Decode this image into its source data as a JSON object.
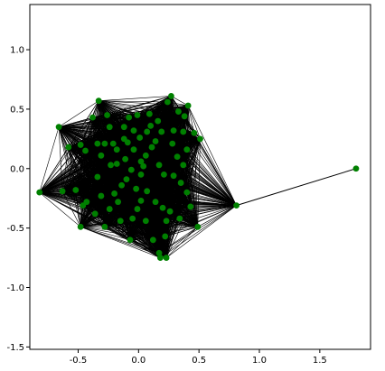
{
  "chart_data": {
    "type": "scatter",
    "title": "",
    "xlabel": "",
    "ylabel": "",
    "xlim": [
      -0.9,
      1.92
    ],
    "ylim": [
      -1.52,
      1.38
    ],
    "x_ticks": [
      "-0.5",
      "0.0",
      "0.5",
      "1.0",
      "1.5"
    ],
    "x_tick_values": [
      -0.5,
      0.0,
      0.5,
      1.0,
      1.5
    ],
    "y_ticks": [
      "-1.5",
      "-1.0",
      "-0.5",
      "0.0",
      "0.5",
      "1.0"
    ],
    "y_tick_values": [
      -1.5,
      -1.0,
      -0.5,
      0.0,
      0.5,
      1.0
    ],
    "grid": false,
    "node_color": "#008000",
    "edge_color": "#000000",
    "nodes": [
      {
        "x": -0.33,
        "y": 0.57
      },
      {
        "x": 0.27,
        "y": 0.61
      },
      {
        "x": 0.41,
        "y": 0.53
      },
      {
        "x": -0.66,
        "y": 0.35
      },
      {
        "x": 0.51,
        "y": 0.25
      },
      {
        "x": -0.82,
        "y": -0.2
      },
      {
        "x": -0.48,
        "y": -0.49
      },
      {
        "x": 0.81,
        "y": -0.31
      },
      {
        "x": 1.8,
        "y": 0.0
      },
      {
        "x": 0.49,
        "y": -0.49
      },
      {
        "x": 0.23,
        "y": -0.75
      },
      {
        "x": 0.18,
        "y": -0.75
      },
      {
        "x": -0.07,
        "y": -0.6
      },
      {
        "x": 0.17,
        "y": -0.71
      },
      {
        "x": -0.28,
        "y": -0.49
      },
      {
        "x": 0.22,
        "y": -0.57
      },
      {
        "x": -0.63,
        "y": -0.19
      },
      {
        "x": -0.58,
        "y": 0.18
      },
      {
        "x": -0.48,
        "y": 0.2
      },
      {
        "x": -0.44,
        "y": 0.15
      },
      {
        "x": -0.34,
        "y": 0.21
      },
      {
        "x": -0.28,
        "y": 0.21
      },
      {
        "x": -0.21,
        "y": 0.21
      },
      {
        "x": -0.18,
        "y": 0.16
      },
      {
        "x": -0.31,
        "y": 0.11
      },
      {
        "x": -0.23,
        "y": 0.03
      },
      {
        "x": -0.18,
        "y": 0.04
      },
      {
        "x": -0.11,
        "y": 0.08
      },
      {
        "x": -0.09,
        "y": 0.22
      },
      {
        "x": -0.04,
        "y": 0.16
      },
      {
        "x": 0.01,
        "y": 0.26
      },
      {
        "x": 0.02,
        "y": 0.06
      },
      {
        "x": 0.06,
        "y": 0.11
      },
      {
        "x": 0.11,
        "y": 0.18
      },
      {
        "x": 0.14,
        "y": 0.23
      },
      {
        "x": 0.1,
        "y": 0.36
      },
      {
        "x": 0.07,
        "y": 0.31
      },
      {
        "x": -0.04,
        "y": 0.32
      },
      {
        "x": -0.01,
        "y": 0.45
      },
      {
        "x": -0.12,
        "y": 0.35
      },
      {
        "x": -0.26,
        "y": 0.45
      },
      {
        "x": -0.38,
        "y": 0.43
      },
      {
        "x": -0.24,
        "y": 0.35
      },
      {
        "x": 0.16,
        "y": 0.4
      },
      {
        "x": 0.24,
        "y": 0.56
      },
      {
        "x": 0.19,
        "y": 0.31
      },
      {
        "x": 0.28,
        "y": 0.21
      },
      {
        "x": 0.32,
        "y": 0.1
      },
      {
        "x": 0.4,
        "y": 0.16
      },
      {
        "x": 0.46,
        "y": 0.3
      },
      {
        "x": 0.37,
        "y": 0.03
      },
      {
        "x": 0.4,
        "y": -0.2
      },
      {
        "x": 0.43,
        "y": -0.32
      },
      {
        "x": 0.34,
        "y": -0.42
      },
      {
        "x": 0.26,
        "y": -0.36
      },
      {
        "x": 0.2,
        "y": -0.33
      },
      {
        "x": 0.14,
        "y": -0.28
      },
      {
        "x": 0.07,
        "y": -0.19
      },
      {
        "x": 0.02,
        "y": -0.27
      },
      {
        "x": -0.01,
        "y": -0.34
      },
      {
        "x": -0.05,
        "y": -0.42
      },
      {
        "x": -0.15,
        "y": -0.44
      },
      {
        "x": -0.24,
        "y": -0.34
      },
      {
        "x": -0.31,
        "y": -0.23
      },
      {
        "x": -0.43,
        "y": -0.28
      },
      {
        "x": -0.36,
        "y": -0.38
      },
      {
        "x": -0.2,
        "y": -0.21
      },
      {
        "x": -0.14,
        "y": -0.14
      },
      {
        "x": -0.1,
        "y": -0.09
      },
      {
        "x": -0.06,
        "y": -0.01
      },
      {
        "x": 0.02,
        "y": -0.05
      },
      {
        "x": 0.04,
        "y": 0.02
      },
      {
        "x": -0.34,
        "y": -0.07
      },
      {
        "x": -0.46,
        "y": -0.31
      },
      {
        "x": -0.52,
        "y": -0.18
      },
      {
        "x": 0.06,
        "y": -0.44
      },
      {
        "x": 0.12,
        "y": -0.6
      },
      {
        "x": 0.23,
        "y": -0.44
      },
      {
        "x": 0.21,
        "y": -0.05
      },
      {
        "x": 0.29,
        "y": -0.06
      },
      {
        "x": 0.35,
        "y": -0.12
      },
      {
        "x": 0.17,
        "y": 0.03
      },
      {
        "x": -0.08,
        "y": 0.43
      },
      {
        "x": -0.17,
        "y": -0.28
      },
      {
        "x": 0.29,
        "y": 0.32
      },
      {
        "x": 0.33,
        "y": 0.48
      },
      {
        "x": 0.38,
        "y": 0.44
      },
      {
        "x": 0.37,
        "y": 0.31
      },
      {
        "x": -0.12,
        "y": 0.25
      },
      {
        "x": -0.02,
        "y": -0.17
      },
      {
        "x": 0.09,
        "y": 0.46
      }
    ]
  }
}
